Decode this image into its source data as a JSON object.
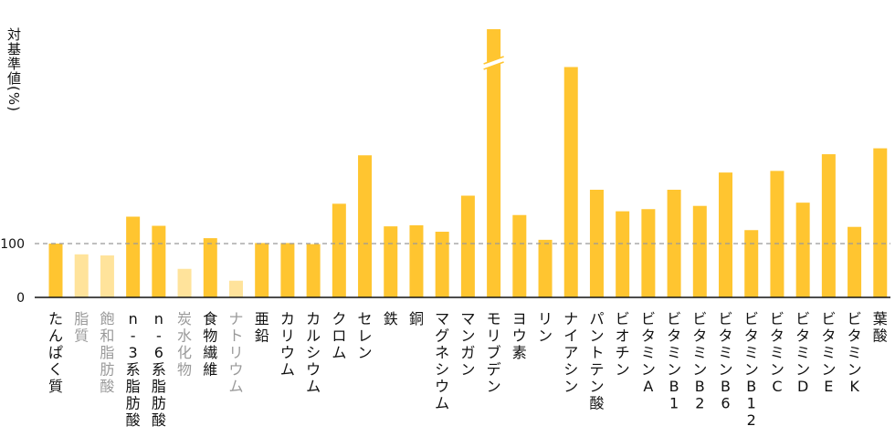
{
  "chart_data": {
    "type": "bar",
    "ylabel": "対基準値(%)",
    "yticks": [
      0,
      100
    ],
    "reference_line": 100,
    "ylim": [
      0,
      500
    ],
    "axis_break": {
      "category": "モリブデン",
      "actual_value": null,
      "drawn_value": 500
    },
    "colors": {
      "primary": "#ffc530",
      "muted": "#ffe39b",
      "refline": "#999999",
      "axis": "#111111"
    },
    "categories": [
      {
        "label": "たんぱく質",
        "value": 100,
        "muted": false
      },
      {
        "label": "脂質",
        "value": 80,
        "muted": true
      },
      {
        "label": "飽和脂肪酸",
        "value": 78,
        "muted": true
      },
      {
        "label": "n-3系脂肪酸",
        "value": 150,
        "muted": false
      },
      {
        "label": "n-6系脂肪酸",
        "value": 133,
        "muted": false
      },
      {
        "label": "炭水化物",
        "value": 53,
        "muted": true
      },
      {
        "label": "食物繊維",
        "value": 110,
        "muted": false
      },
      {
        "label": "ナトリウム",
        "value": 31,
        "muted": true
      },
      {
        "label": "亜鉛",
        "value": 101,
        "muted": false
      },
      {
        "label": "カリウム",
        "value": 101,
        "muted": false
      },
      {
        "label": "カルシウム",
        "value": 99,
        "muted": false
      },
      {
        "label": "クロム",
        "value": 174,
        "muted": false
      },
      {
        "label": "セレン",
        "value": 264,
        "muted": false
      },
      {
        "label": "鉄",
        "value": 132,
        "muted": false
      },
      {
        "label": "銅",
        "value": 134,
        "muted": false
      },
      {
        "label": "マグネシウム",
        "value": 122,
        "muted": false
      },
      {
        "label": "マンガン",
        "value": 189,
        "muted": false
      },
      {
        "label": "モリブデン",
        "value": 500,
        "muted": false
      },
      {
        "label": "ヨウ素",
        "value": 153,
        "muted": false
      },
      {
        "label": "リン",
        "value": 107,
        "muted": false
      },
      {
        "label": "ナイアシン",
        "value": 428,
        "muted": false
      },
      {
        "label": "パントテン酸",
        "value": 200,
        "muted": false
      },
      {
        "label": "ビオチン",
        "value": 160,
        "muted": false
      },
      {
        "label": "ビタミンA",
        "value": 164,
        "muted": false
      },
      {
        "label": "ビタミンB1",
        "value": 200,
        "muted": false
      },
      {
        "label": "ビタミンB2",
        "value": 170,
        "muted": false
      },
      {
        "label": "ビタミンB6",
        "value": 232,
        "muted": false
      },
      {
        "label": "ビタミンB12",
        "value": 125,
        "muted": false
      },
      {
        "label": "ビタミンC",
        "value": 235,
        "muted": false
      },
      {
        "label": "ビタミンD",
        "value": 176,
        "muted": false
      },
      {
        "label": "ビタミンE",
        "value": 266,
        "muted": false
      },
      {
        "label": "ビタミンK",
        "value": 131,
        "muted": false
      },
      {
        "label": "葉酸",
        "value": 277,
        "muted": false
      }
    ]
  }
}
